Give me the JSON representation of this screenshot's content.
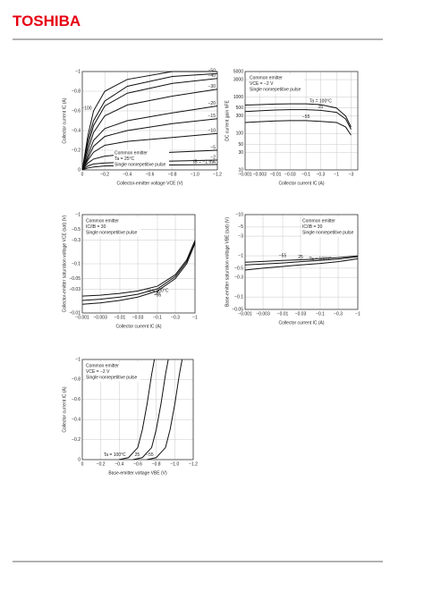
{
  "header": {
    "logo": "TOSHIBA"
  },
  "chart_data": [
    {
      "type": "line",
      "xlabel": "Collector-emitter voltage  VCE  (V)",
      "ylabel": "Collector current  IC  (A)",
      "annotations": [
        "Common emitter",
        "Ta = 25°C",
        "Single nonrepetitive pulse"
      ],
      "xlim": [
        0,
        -1.2
      ],
      "ylim": [
        0,
        -1
      ],
      "grid": true,
      "color": "#111111",
      "xticks": [
        0,
        {
          "value": -0.2,
          "label": "−0.2"
        },
        {
          "value": -0.4,
          "label": "−0.4"
        },
        {
          "value": -0.6,
          "label": "−0.6"
        },
        {
          "value": -0.8,
          "label": "−0.8"
        },
        {
          "value": -1.0,
          "label": "−1.0"
        },
        {
          "value": -1.2,
          "label": "−1.2"
        }
      ],
      "yticks": [
        0,
        {
          "value": -0.2,
          "label": "−0.2"
        },
        {
          "value": -0.4,
          "label": "−0.4"
        },
        {
          "value": -0.6,
          "label": "−0.6"
        },
        {
          "value": -0.8,
          "label": "−0.8"
        },
        {
          "value": -1,
          "label": "−1"
        }
      ],
      "series": [
        {
          "name": "−100",
          "x": [
            0,
            -0.05,
            -0.1,
            -0.2,
            -0.4,
            -0.8,
            -1.2
          ],
          "values": [
            0,
            -0.35,
            -0.6,
            -0.8,
            -0.92,
            -1,
            -1
          ]
        },
        {
          "name": "−50",
          "x": [
            0,
            -0.05,
            -0.1,
            -0.2,
            -0.4,
            -0.8,
            -1.2
          ],
          "values": [
            0,
            -0.3,
            -0.5,
            -0.7,
            -0.85,
            -0.95,
            -0.98
          ]
        },
        {
          "name": "−40",
          "x": [
            0,
            -0.05,
            -0.1,
            -0.2,
            -0.4,
            -0.8,
            -1.2
          ],
          "values": [
            0,
            -0.25,
            -0.45,
            -0.65,
            -0.78,
            -0.88,
            -0.93
          ]
        },
        {
          "name": "−30",
          "x": [
            0,
            -0.05,
            -0.1,
            -0.2,
            -0.4,
            -0.8,
            -1.2
          ],
          "values": [
            0,
            -0.2,
            -0.38,
            -0.55,
            -0.66,
            -0.75,
            -0.82
          ]
        },
        {
          "name": "−20",
          "x": [
            0,
            -0.05,
            -0.1,
            -0.2,
            -0.4,
            -0.8,
            -1.2
          ],
          "values": [
            0,
            -0.15,
            -0.3,
            -0.42,
            -0.5,
            -0.58,
            -0.65
          ]
        },
        {
          "name": "−15",
          "x": [
            0,
            -0.05,
            -0.1,
            -0.2,
            -0.4,
            -0.8,
            -1.2
          ],
          "values": [
            0,
            -0.12,
            -0.24,
            -0.34,
            -0.4,
            -0.47,
            -0.52
          ]
        },
        {
          "name": "−10",
          "x": [
            0,
            -0.05,
            -0.1,
            -0.2,
            -0.4,
            -0.8,
            -1.2
          ],
          "values": [
            0,
            -0.1,
            -0.18,
            -0.25,
            -0.29,
            -0.33,
            -0.37
          ]
        },
        {
          "name": "−5",
          "x": [
            0,
            -0.05,
            -0.1,
            -0.2,
            -0.4,
            -0.8,
            -1.2
          ],
          "values": [
            0,
            -0.07,
            -0.11,
            -0.14,
            -0.16,
            -0.18,
            -0.2
          ]
        },
        {
          "name": "−2",
          "x": [
            0,
            -0.05,
            -0.1,
            -0.2,
            -0.4,
            -0.8,
            -1.2
          ],
          "values": [
            0,
            -0.04,
            -0.06,
            -0.07,
            -0.08,
            -0.09,
            -0.1
          ]
        },
        {
          "name": "IB = −1 mA",
          "x": [
            0,
            -0.05,
            -0.1,
            -0.2,
            -0.4,
            -0.8,
            -1.2
          ],
          "values": [
            0,
            -0.02,
            -0.03,
            -0.04,
            -0.045,
            -0.05,
            -0.055
          ]
        }
      ]
    },
    {
      "type": "line",
      "xlabel": "Collector current  IC  (A)",
      "ylabel": "DC current gain  hFE",
      "annotations": [
        "Common emitter",
        "VCE = −2 V",
        "Single nonrepetitive pulse"
      ],
      "xlog": true,
      "ylog": true,
      "xlim": [
        -0.001,
        -5
      ],
      "ylim": [
        10,
        5000
      ],
      "grid": true,
      "color": "#111111",
      "xticks": [
        {
          "value": -0.001,
          "label": "−0.001"
        },
        {
          "value": -0.003,
          "label": "−0.003"
        },
        {
          "value": -0.01,
          "label": "−0.01"
        },
        {
          "value": -0.03,
          "label": "−0.03"
        },
        {
          "value": -0.1,
          "label": "−0.1"
        },
        {
          "value": -0.3,
          "label": "−0.3"
        },
        {
          "value": -1,
          "label": "−1"
        },
        {
          "value": -3,
          "label": "−3"
        }
      ],
      "yticks": [
        10,
        30,
        50,
        100,
        300,
        500,
        1000,
        3000,
        5000
      ],
      "series": [
        {
          "name": "Ta = 100°C",
          "x": [
            -0.001,
            -0.003,
            -0.01,
            -0.03,
            -0.1,
            -0.3,
            -1,
            -2,
            -3
          ],
          "values": [
            600,
            620,
            640,
            650,
            650,
            620,
            500,
            300,
            150
          ]
        },
        {
          "name": "25",
          "x": [
            -0.001,
            -0.003,
            -0.01,
            -0.03,
            -0.1,
            -0.3,
            -1,
            -2,
            -3
          ],
          "values": [
            400,
            420,
            440,
            450,
            450,
            430,
            380,
            250,
            130
          ]
        },
        {
          "name": "−55",
          "x": [
            -0.001,
            -0.003,
            -0.01,
            -0.03,
            -0.1,
            -0.3,
            -1,
            -2,
            -3
          ],
          "values": [
            200,
            210,
            220,
            225,
            225,
            215,
            200,
            150,
            90
          ]
        }
      ]
    },
    {
      "type": "line",
      "xlabel": "Collector current  IC  (A)",
      "ylabel": "Collector-emitter saturation voltage  VCE (sat)  (V)",
      "annotations": [
        "Common emitter",
        "IC/IB = 30",
        "Single nonrepetitive pulse"
      ],
      "xlog": true,
      "ylog": true,
      "xlim": [
        -0.001,
        -1
      ],
      "ylim": [
        -0.01,
        -1
      ],
      "grid": true,
      "color": "#111111",
      "xticks": [
        {
          "value": -0.001,
          "label": "−0.001"
        },
        {
          "value": -0.003,
          "label": "−0.003"
        },
        {
          "value": -0.01,
          "label": "−0.01"
        },
        {
          "value": -0.03,
          "label": "−0.03"
        },
        {
          "value": -0.1,
          "label": "−0.1"
        },
        {
          "value": -0.3,
          "label": "−0.3"
        },
        {
          "value": -1,
          "label": "−1"
        }
      ],
      "yticks": [
        {
          "value": -0.01,
          "label": "−0.01"
        },
        {
          "value": -0.03,
          "label": "−0.03"
        },
        {
          "value": -0.05,
          "label": "−0.05"
        },
        {
          "value": -0.1,
          "label": "−0.1"
        },
        {
          "value": -0.3,
          "label": "−0.3"
        },
        {
          "value": -0.5,
          "label": "−0.5"
        },
        {
          "value": -1,
          "label": "−1"
        }
      ],
      "series": [
        {
          "name": "Ta = 100°C",
          "x": [
            -0.001,
            -0.003,
            -0.01,
            -0.03,
            -0.1,
            -0.3,
            -0.6,
            -1
          ],
          "values": [
            -0.022,
            -0.023,
            -0.025,
            -0.028,
            -0.035,
            -0.06,
            -0.12,
            -0.3
          ]
        },
        {
          "name": "25",
          "x": [
            -0.001,
            -0.003,
            -0.01,
            -0.03,
            -0.1,
            -0.3,
            -0.6,
            -1
          ],
          "values": [
            -0.018,
            -0.019,
            -0.021,
            -0.024,
            -0.031,
            -0.055,
            -0.11,
            -0.28
          ]
        },
        {
          "name": "−55",
          "x": [
            -0.001,
            -0.003,
            -0.01,
            -0.03,
            -0.1,
            -0.3,
            -0.6,
            -1
          ],
          "values": [
            -0.015,
            -0.016,
            -0.018,
            -0.021,
            -0.028,
            -0.05,
            -0.1,
            -0.26
          ]
        }
      ]
    },
    {
      "type": "line",
      "xlabel": "Collector current  IC  (A)",
      "ylabel": "Base-emitter saturation voltage  VBE (sat)  (V)",
      "annotations": [
        "Common emitter",
        "IC/IB = 30",
        "Single nonrepetitive pulse"
      ],
      "xlog": true,
      "ylog": true,
      "xlim": [
        -0.001,
        -1
      ],
      "ylim": [
        -0.05,
        -10
      ],
      "grid": true,
      "color": "#111111",
      "xticks": [
        {
          "value": -0.001,
          "label": "−0.001"
        },
        {
          "value": -0.003,
          "label": "−0.003"
        },
        {
          "value": -0.01,
          "label": "−0.01"
        },
        {
          "value": -0.03,
          "label": "−0.03"
        },
        {
          "value": -0.1,
          "label": "−0.1"
        },
        {
          "value": -0.3,
          "label": "−0.3"
        },
        {
          "value": -1,
          "label": "−1"
        }
      ],
      "yticks": [
        {
          "value": -0.05,
          "label": "−0.05"
        },
        {
          "value": -0.1,
          "label": "−0.1"
        },
        {
          "value": -0.3,
          "label": "−0.3"
        },
        {
          "value": -0.5,
          "label": "−0.5"
        },
        {
          "value": -1,
          "label": "−1"
        },
        {
          "value": -3,
          "label": "−3"
        },
        {
          "value": -5,
          "label": "−5"
        },
        {
          "value": -10,
          "label": "−10"
        }
      ],
      "series": [
        {
          "name": "−55",
          "x": [
            -0.001,
            -0.003,
            -0.01,
            -0.03,
            -0.1,
            -0.3,
            -1
          ],
          "values": [
            -0.7,
            -0.73,
            -0.77,
            -0.8,
            -0.84,
            -0.9,
            -1.0
          ]
        },
        {
          "name": "25",
          "x": [
            -0.001,
            -0.003,
            -0.01,
            -0.03,
            -0.1,
            -0.3,
            -1
          ],
          "values": [
            -0.6,
            -0.63,
            -0.67,
            -0.72,
            -0.77,
            -0.83,
            -0.95
          ]
        },
        {
          "name": "Ta = 100°C",
          "x": [
            -0.001,
            -0.003,
            -0.01,
            -0.03,
            -0.1,
            -0.3,
            -1
          ],
          "values": [
            -0.45,
            -0.5,
            -0.55,
            -0.6,
            -0.65,
            -0.72,
            -0.85
          ]
        }
      ]
    },
    {
      "type": "line",
      "xlabel": "Base-emitter voltage  VBE  (V)",
      "ylabel": "Collector current  IC  (A)",
      "annotations": [
        "Common emitter",
        "VCE = −2 V",
        "Single nonrepetitive pulse"
      ],
      "xlim": [
        0,
        -1.2
      ],
      "ylim": [
        0,
        -1
      ],
      "grid": true,
      "color": "#111111",
      "xticks": [
        0,
        {
          "value": -0.2,
          "label": "−0.2"
        },
        {
          "value": -0.4,
          "label": "−0.4"
        },
        {
          "value": -0.6,
          "label": "−0.6"
        },
        {
          "value": -0.8,
          "label": "−0.8"
        },
        {
          "value": -1.0,
          "label": "−1.0"
        },
        {
          "value": -1.2,
          "label": "−1.2"
        }
      ],
      "yticks": [
        0,
        {
          "value": -0.2,
          "label": "−0.2"
        },
        {
          "value": -0.4,
          "label": "−0.4"
        },
        {
          "value": -0.6,
          "label": "−0.6"
        },
        {
          "value": -0.8,
          "label": "−0.8"
        },
        {
          "value": -1,
          "label": "−1"
        }
      ],
      "series": [
        {
          "name": "Ta = 100°C",
          "x": [
            -0.4,
            -0.5,
            -0.6,
            -0.65,
            -0.7,
            -0.75,
            -0.78
          ],
          "values": [
            0,
            -0.02,
            -0.12,
            -0.3,
            -0.55,
            -0.85,
            -1
          ]
        },
        {
          "name": "25",
          "x": [
            -0.55,
            -0.65,
            -0.75,
            -0.8,
            -0.85,
            -0.9,
            -0.93
          ],
          "values": [
            0,
            -0.02,
            -0.12,
            -0.3,
            -0.55,
            -0.85,
            -1
          ]
        },
        {
          "name": "−55",
          "x": [
            -0.7,
            -0.8,
            -0.9,
            -0.95,
            -1,
            -1.05,
            -1.08
          ],
          "values": [
            0,
            -0.02,
            -0.12,
            -0.3,
            -0.55,
            -0.85,
            -1
          ]
        }
      ]
    }
  ]
}
